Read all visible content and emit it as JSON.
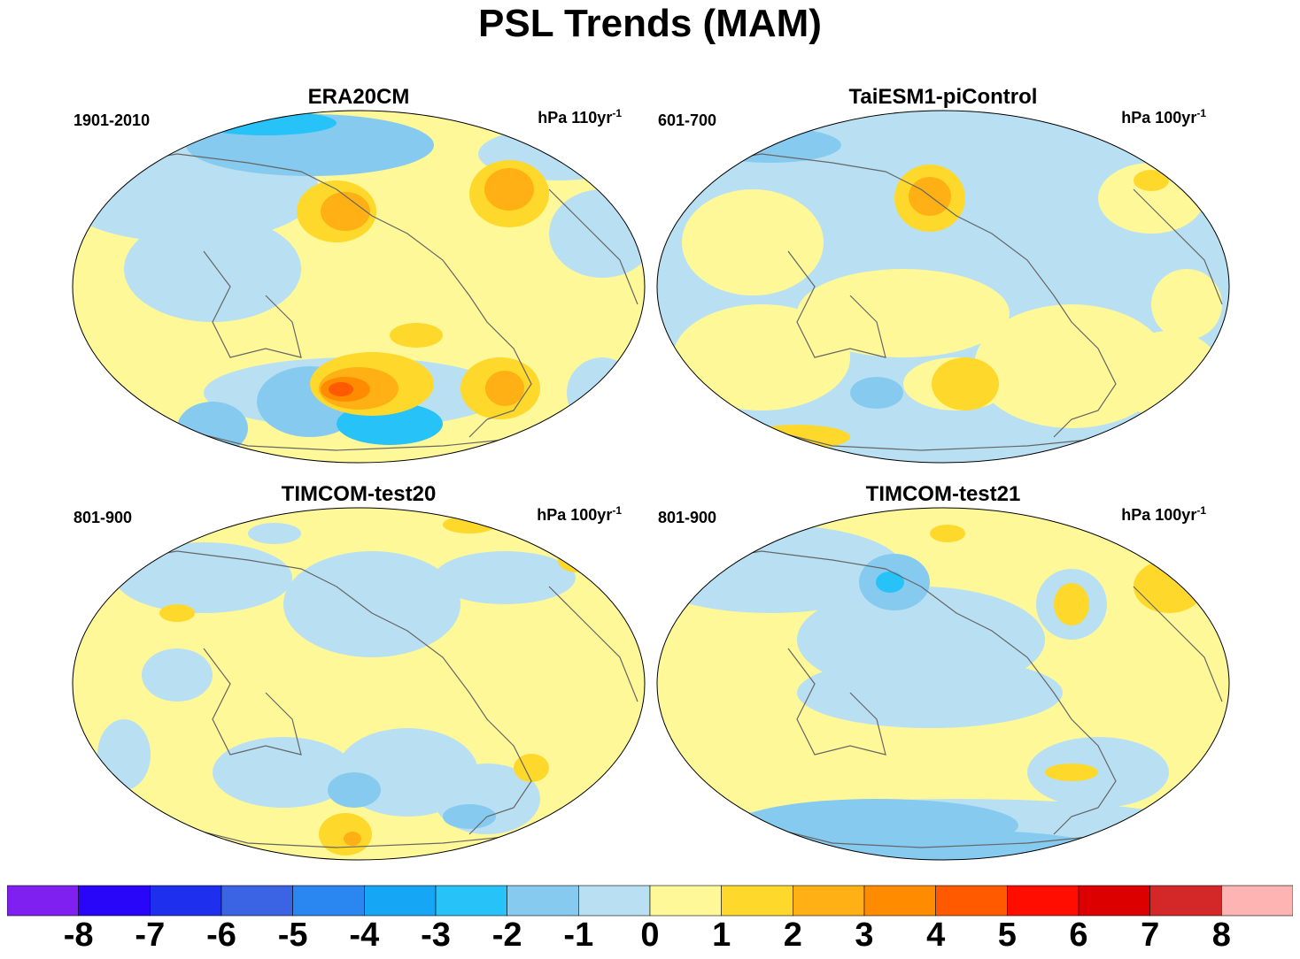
{
  "title": "PSL Trends (MAM)",
  "panels": [
    {
      "title": "ERA20CM",
      "period": "1901-2010",
      "units_base": "hPa 110yr",
      "units_exp": "-1"
    },
    {
      "title": "TaiESM1-piControl",
      "period": "601-700",
      "units_base": "hPa 100yr",
      "units_exp": "-1"
    },
    {
      "title": "TIMCOM-test20",
      "period": "801-900",
      "units_base": "hPa 100yr",
      "units_exp": "-1"
    },
    {
      "title": "TIMCOM-test21",
      "period": "801-900",
      "units_base": "hPa 100yr",
      "units_exp": "-1"
    }
  ],
  "colorbar": {
    "labels": [
      "-8",
      "-7",
      "-6",
      "-5",
      "-4",
      "-3",
      "-2",
      "-1",
      "0",
      "1",
      "2",
      "3",
      "4",
      "5",
      "6",
      "7",
      "8"
    ],
    "colors": [
      "#7f1ff0",
      "#2a06f8",
      "#1e30ee",
      "#3a64e4",
      "#2a86f0",
      "#16a6f6",
      "#26c2f8",
      "#86cbef",
      "#b8e0f2",
      "#fff899",
      "#ffd82c",
      "#ffb014",
      "#ff8c00",
      "#ff5a00",
      "#ff0e00",
      "#dc0000",
      "#d42828",
      "#ffb4b4"
    ]
  }
}
